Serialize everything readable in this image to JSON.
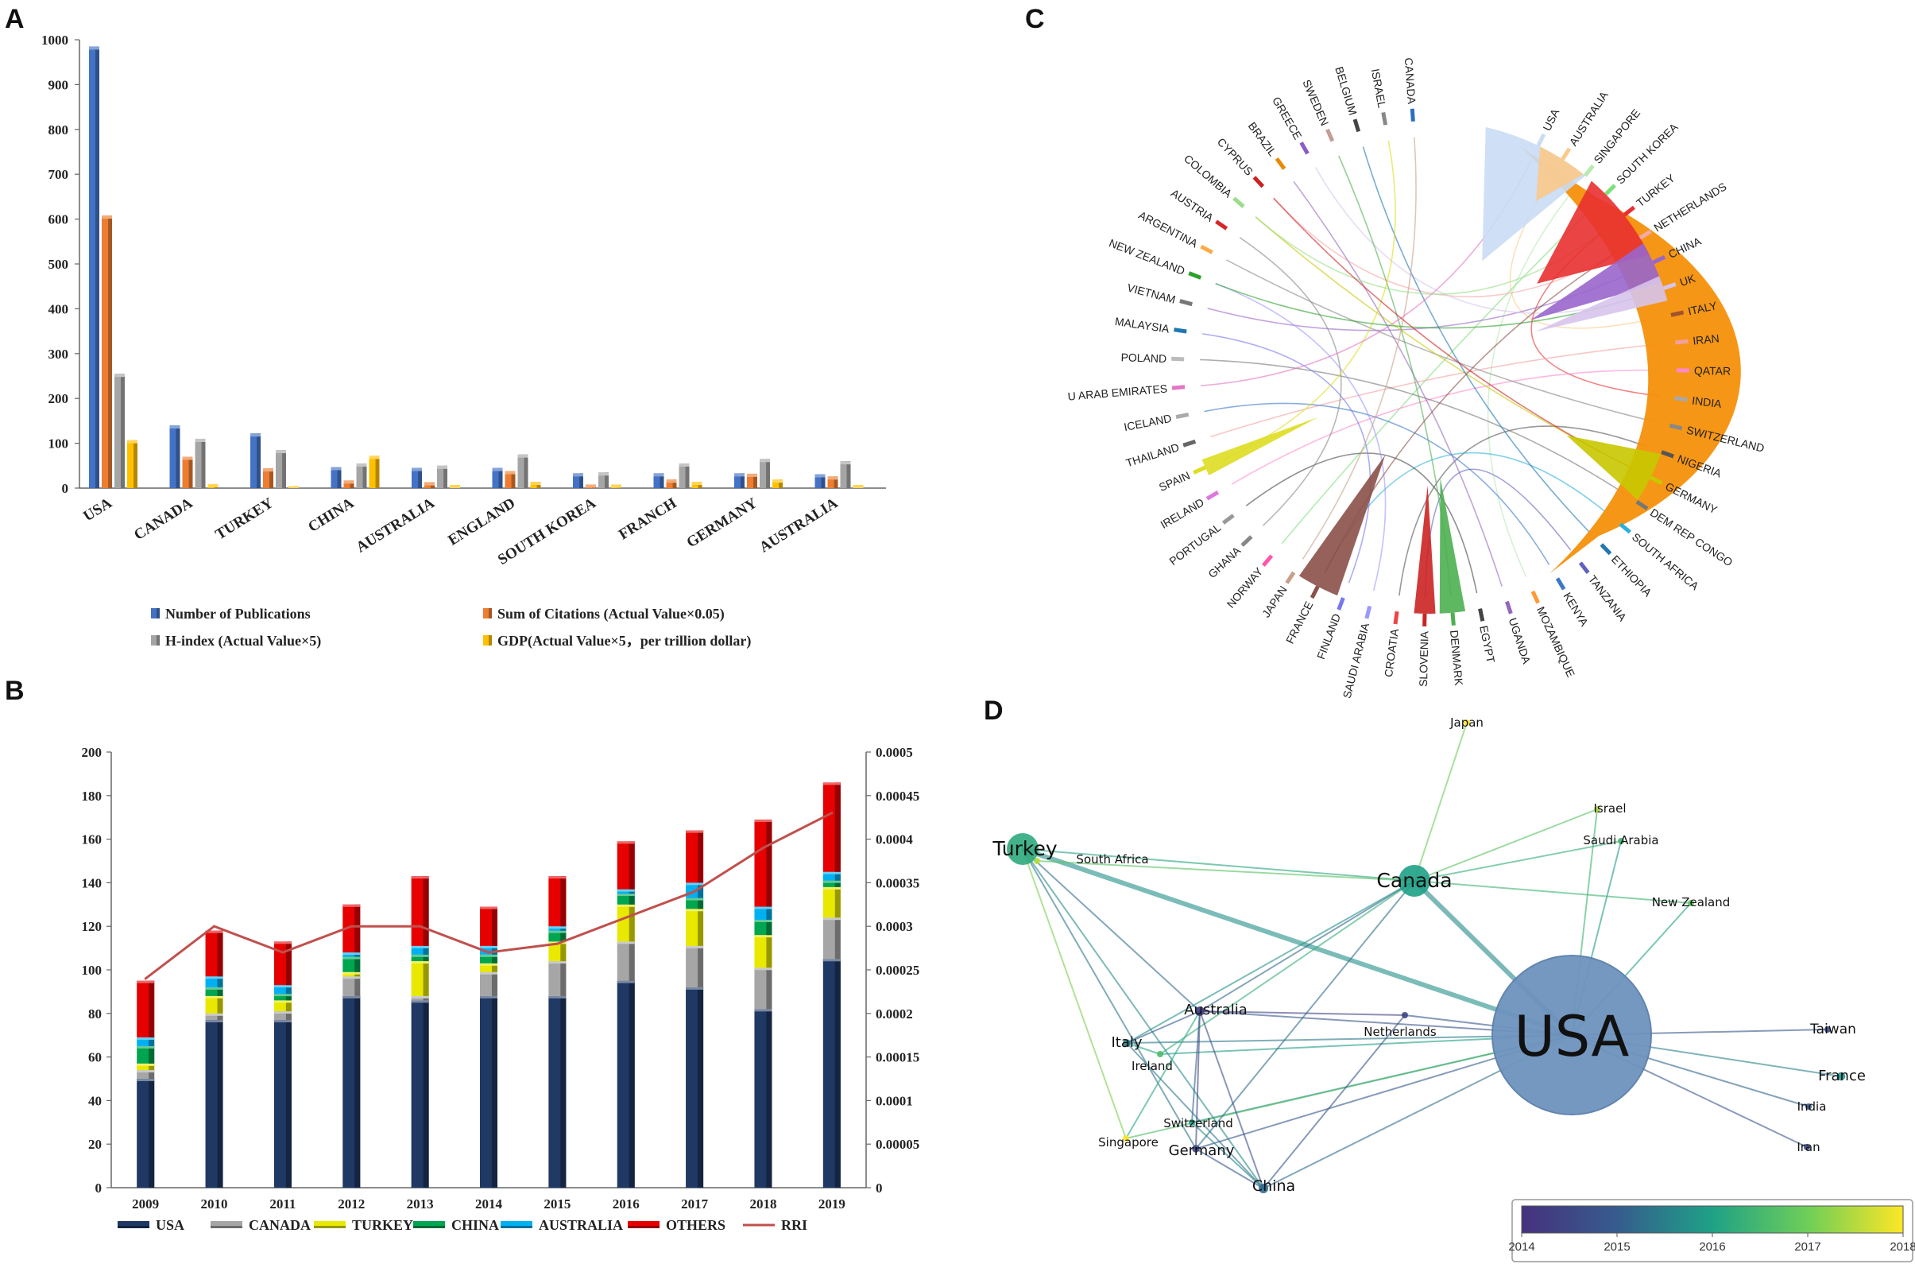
{
  "panels": [
    "A",
    "B",
    "C",
    "D"
  ],
  "chart_data": [
    {
      "type": "bar",
      "panel": "A",
      "categories": [
        "USA",
        "CANADA",
        "TURKEY",
        "CHINA",
        "AUSTRALIA",
        "ENGLAND",
        "SOUTH KOREA",
        "FRANCH",
        "GERMANY",
        "AUSTRALIA"
      ],
      "series": [
        {
          "name": "Number of Publications",
          "color": "#4472c4",
          "values": [
            985,
            140,
            122,
            47,
            45,
            45,
            33,
            33,
            33,
            31
          ]
        },
        {
          "name": "Sum of Citations (Actual Value×0.05)",
          "color": "#ed7d31",
          "values": [
            608,
            70,
            44,
            17,
            13,
            38,
            8,
            19,
            32,
            26
          ]
        },
        {
          "name": "H-index (Actual Value×5)",
          "color": "#a5a5a5",
          "values": [
            255,
            110,
            85,
            55,
            50,
            75,
            35,
            55,
            65,
            60
          ]
        },
        {
          "name": "GDP(Actual Value×5，per trillion dollar)",
          "color": "#ffc000",
          "values": [
            107,
            9,
            4,
            72,
            7,
            14,
            8,
            14,
            19,
            7
          ]
        }
      ],
      "ylim": [
        0,
        1000
      ],
      "yticks": [
        0,
        100,
        200,
        300,
        400,
        500,
        600,
        700,
        800,
        900,
        1000
      ]
    },
    {
      "type": "bar",
      "stacked": true,
      "panel": "B",
      "categories": [
        "2009",
        "2010",
        "2011",
        "2012",
        "2013",
        "2014",
        "2015",
        "2016",
        "2017",
        "2018",
        "2019"
      ],
      "series": [
        {
          "name": "USA",
          "color": "#1f3864",
          "values": [
            50,
            77,
            77,
            88,
            86,
            88,
            88,
            95,
            92,
            82,
            105
          ]
        },
        {
          "name": "CANADA",
          "color": "#a6a6a6",
          "values": [
            4,
            3,
            4,
            9,
            2,
            11,
            16,
            18,
            19,
            19,
            19
          ]
        },
        {
          "name": "TURKEY",
          "color": "#e8e800",
          "values": [
            3,
            8,
            5,
            2,
            16,
            4,
            9,
            17,
            17,
            15,
            14
          ]
        },
        {
          "name": "CHINA",
          "color": "#00a550",
          "values": [
            8,
            4,
            3,
            7,
            3,
            4,
            5,
            5,
            5,
            7,
            3
          ]
        },
        {
          "name": "AUSTRALIA",
          "color": "#00b0f0",
          "values": [
            4,
            5,
            4,
            2,
            4,
            4,
            2,
            2,
            7,
            6,
            4
          ]
        },
        {
          "name": "OTHERS",
          "color": "#e60000",
          "values": [
            26,
            21,
            20,
            22,
            32,
            18,
            23,
            22,
            24,
            40,
            41
          ]
        }
      ],
      "line": {
        "name": "RRI",
        "color": "#c0504d",
        "values": [
          0.00024,
          0.0003,
          0.00027,
          0.0003,
          0.0003,
          0.00027,
          0.00028,
          0.00031,
          0.00034,
          0.00039,
          0.00043
        ]
      },
      "ylim": [
        0,
        200
      ],
      "yticks": [
        0,
        20,
        40,
        60,
        80,
        100,
        120,
        140,
        160,
        180,
        200
      ],
      "y2lim": [
        0,
        0.0005
      ],
      "y2ticks": [
        "0",
        "0.00005",
        "0.0001",
        "0.00015",
        "0.0002",
        "0.00025",
        "0.0003",
        "0.00035",
        "0.0004",
        "0.00045",
        "0.0005"
      ]
    },
    {
      "type": "chord",
      "panel": "C",
      "labels": [
        "USA",
        "AUSTRALIA",
        "SINGAPORE",
        "SOUTH KOREA",
        "TURKEY",
        "NETHERLANDS",
        "CHINA",
        "UK",
        "ITALY",
        "IRAN",
        "QATAR",
        "INDIA",
        "SWITZERLAND",
        "NIGERIA",
        "GERMANY",
        "DEM REP CONGO",
        "SOUTH AFRICA",
        "ETHIOPIA",
        "TANZANIA",
        "KENYA",
        "MOZAMBIQUE",
        "UGANDA",
        "EGYPT",
        "DENMARK",
        "SLOVENIA",
        "CROATIA",
        "SAUDI ARABIA",
        "FINLAND",
        "FRANCE",
        "JAPAN",
        "NORWAY",
        "GHANA",
        "PORTUGAL",
        "IRELAND",
        "SPAIN",
        "THAILAND",
        "ICELAND",
        "U ARAB EMIRATES",
        "POLAND",
        "MALAYSIA",
        "VIETNAM",
        "NEW ZEALAND",
        "ARGENTINA",
        "AUSTRIA",
        "COLOMBIA",
        "CYPRUS",
        "BRAZIL",
        "GREECE",
        "SWEDEN",
        "BELGIUM",
        "ISRAEL",
        "CANADA"
      ],
      "colors": [
        "#c9dcf5",
        "#fbc98a",
        "#b7eab0",
        "#7ee07a",
        "#e83030",
        "#f5a9a9",
        "#9966cc",
        "#d7c4ec",
        "#a0522d",
        "#f4a0a0",
        "#ff88cc",
        "#a9a9a9",
        "#888888",
        "#555555",
        "#c8c800",
        "#777777",
        "#2fb0d8",
        "#1f77b4",
        "#6060c0",
        "#3a78c8",
        "#ff9933",
        "#9467bd",
        "#444444",
        "#4caf50",
        "#cc2222",
        "#ee4444",
        "#9999ff",
        "#7777ee",
        "#8b5048",
        "#c8a088",
        "#ff55aa",
        "#888888",
        "#999999",
        "#dd77dd",
        "#dddd22",
        "#666666",
        "#aaaaaa",
        "#e377c2",
        "#bbbbbb",
        "#1f77b4",
        "#777777",
        "#2ca02c",
        "#ffaa44",
        "#d62728",
        "#99dd88",
        "#cc2222",
        "#e88a00",
        "#8a5cc4",
        "#c49c94",
        "#444444",
        "#888888",
        "#2d6fbf"
      ],
      "main_flow": {
        "from": "USA",
        "to": "AUSTRALIA",
        "color": "#f5900a"
      }
    },
    {
      "type": "network",
      "panel": "D",
      "nodes": [
        {
          "name": "USA",
          "size": 10,
          "year": 2015.3
        },
        {
          "name": "Canada",
          "size": 3,
          "year": 2016.0
        },
        {
          "name": "Turkey",
          "size": 3,
          "year": 2016.2
        },
        {
          "name": "Japan",
          "size": 1,
          "year": 2018.0
        },
        {
          "name": "Israel",
          "size": 1,
          "year": 2017.5
        },
        {
          "name": "Saudi Arabia",
          "size": 1,
          "year": 2016.5
        },
        {
          "name": "New Zealand",
          "size": 1,
          "year": 2016.8
        },
        {
          "name": "South Africa",
          "size": 1,
          "year": 2017.5
        },
        {
          "name": "Australia",
          "size": 1.5,
          "year": 2014.3
        },
        {
          "name": "Netherlands",
          "size": 1,
          "year": 2014.5
        },
        {
          "name": "Italy",
          "size": 1.2,
          "year": 2015.5
        },
        {
          "name": "Ireland",
          "size": 1,
          "year": 2016.6
        },
        {
          "name": "Switzerland",
          "size": 1,
          "year": 2016.0
        },
        {
          "name": "Singapore",
          "size": 1,
          "year": 2018.0
        },
        {
          "name": "Germany",
          "size": 1.2,
          "year": 2014.5
        },
        {
          "name": "China",
          "size": 1.5,
          "year": 2015.2
        },
        {
          "name": "Taiwan",
          "size": 1,
          "year": 2014.5
        },
        {
          "name": "France",
          "size": 1.3,
          "year": 2015.8
        },
        {
          "name": "India",
          "size": 1,
          "year": 2015.0
        },
        {
          "name": "Iran",
          "size": 1,
          "year": 2014.5
        }
      ],
      "edges": [
        [
          "USA",
          "Canada"
        ],
        [
          "USA",
          "Turkey"
        ],
        [
          "USA",
          "Australia"
        ],
        [
          "USA",
          "Netherlands"
        ],
        [
          "USA",
          "Italy"
        ],
        [
          "USA",
          "Ireland"
        ],
        [
          "USA",
          "Germany"
        ],
        [
          "USA",
          "China"
        ],
        [
          "USA",
          "Switzerland"
        ],
        [
          "USA",
          "Taiwan"
        ],
        [
          "USA",
          "France"
        ],
        [
          "USA",
          "India"
        ],
        [
          "USA",
          "Iran"
        ],
        [
          "USA",
          "Israel"
        ],
        [
          "USA",
          "Saudi Arabia"
        ],
        [
          "USA",
          "New Zealand"
        ],
        [
          "USA",
          "Singapore"
        ],
        [
          "Canada",
          "Japan"
        ],
        [
          "Canada",
          "Israel"
        ],
        [
          "Canada",
          "Turkey"
        ],
        [
          "Canada",
          "South Africa"
        ],
        [
          "Canada",
          "Australia"
        ],
        [
          "Canada",
          "Italy"
        ],
        [
          "Canada",
          "Ireland"
        ],
        [
          "Canada",
          "New Zealand"
        ],
        [
          "Canada",
          "Saudi Arabia"
        ],
        [
          "Canada",
          "Germany"
        ],
        [
          "Turkey",
          "South Africa"
        ],
        [
          "Turkey",
          "Australia"
        ],
        [
          "Turkey",
          "Singapore"
        ],
        [
          "Turkey",
          "Germany"
        ],
        [
          "Turkey",
          "China"
        ],
        [
          "Australia",
          "Italy"
        ],
        [
          "Australia",
          "Germany"
        ],
        [
          "Australia",
          "China"
        ],
        [
          "Australia",
          "Netherlands"
        ],
        [
          "Australia",
          "Singapore"
        ],
        [
          "Australia",
          "Switzerland"
        ],
        [
          "Italy",
          "Ireland"
        ],
        [
          "Italy",
          "China"
        ],
        [
          "Germany",
          "China"
        ],
        [
          "Netherlands",
          "China"
        ],
        [
          "Switzerland",
          "China"
        ]
      ],
      "colorbar": {
        "min": 2014,
        "max": 2018,
        "ticks": [
          "2014",
          "2015",
          "2016",
          "2017",
          "2018"
        ]
      }
    }
  ]
}
